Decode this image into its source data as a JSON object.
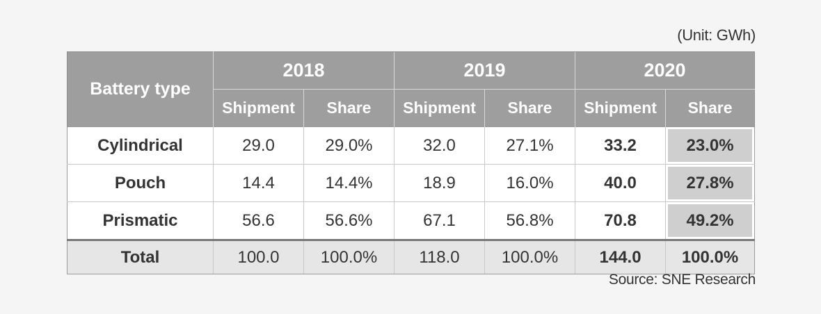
{
  "unit_note": "(Unit: GWh)",
  "source_note": "Source: SNE Research",
  "table": {
    "type_header": "Battery type",
    "years": [
      "2018",
      "2019",
      "2020"
    ],
    "sub_headers": [
      "Shipment",
      "Share"
    ],
    "rows": [
      {
        "type": "Cylindrical",
        "values": [
          "29.0",
          "29.0%",
          "32.0",
          "27.1%",
          "33.2",
          "23.0%"
        ]
      },
      {
        "type": "Pouch",
        "values": [
          "14.4",
          "14.4%",
          "18.9",
          "16.0%",
          "40.0",
          "27.8%"
        ]
      },
      {
        "type": "Prismatic",
        "values": [
          "56.6",
          "56.6%",
          "67.1",
          "56.8%",
          "70.8",
          "49.2%"
        ]
      }
    ],
    "total": {
      "label": "Total",
      "values": [
        "100.0",
        "100.0%",
        "118.0",
        "100.0%",
        "144.0",
        "100.0%"
      ]
    }
  },
  "colors": {
    "header_bg": "#9e9e9e",
    "highlight_bg": "#cfcfcf",
    "total_bg": "#e6e6e6",
    "page_bg": "#f5f5f5"
  }
}
